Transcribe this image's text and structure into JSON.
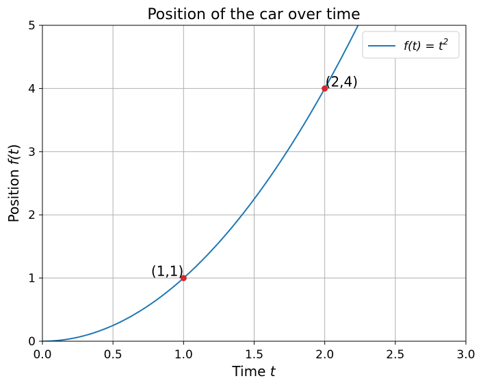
{
  "chart_data": {
    "type": "line",
    "title": "Position of the car over time",
    "xlabel": {
      "text": "Time ",
      "var": "t"
    },
    "ylabel": {
      "text": "Position ",
      "func": "f(",
      "var": "t",
      "close": ")"
    },
    "xlim": [
      0,
      3.0
    ],
    "ylim": [
      0,
      5
    ],
    "grid": true,
    "legend_position": "top-right",
    "x_ticks": [
      {
        "value": 0.0,
        "label": "0.0"
      },
      {
        "value": 0.5,
        "label": "0.5"
      },
      {
        "value": 1.0,
        "label": "1.0"
      },
      {
        "value": 1.5,
        "label": "1.5"
      },
      {
        "value": 2.0,
        "label": "2.0"
      },
      {
        "value": 2.5,
        "label": "2.5"
      },
      {
        "value": 3.0,
        "label": "3.0"
      }
    ],
    "y_ticks": [
      {
        "value": 0,
        "label": "0"
      },
      {
        "value": 1,
        "label": "1"
      },
      {
        "value": 2,
        "label": "2"
      },
      {
        "value": 3,
        "label": "3"
      },
      {
        "value": 4,
        "label": "4"
      },
      {
        "value": 5,
        "label": "5"
      }
    ],
    "series": [
      {
        "name": "f(t) = t²",
        "name_parts": {
          "lhs": "f(t) = t",
          "sup": "2"
        },
        "function": "t^2",
        "color": "#1f77b4",
        "x": [
          0.0,
          0.25,
          0.5,
          0.75,
          1.0,
          1.25,
          1.5,
          1.75,
          2.0,
          2.25
        ],
        "y": [
          0.0,
          0.0625,
          0.25,
          0.5625,
          1.0,
          1.5625,
          2.25,
          3.0625,
          4.0,
          5.0625
        ]
      }
    ],
    "points": [
      {
        "x": 1,
        "y": 1,
        "label": "(1,1)",
        "color": "#d62728"
      },
      {
        "x": 2,
        "y": 4,
        "label": "(2,4)",
        "color": "#d62728"
      }
    ],
    "colors": {
      "grid": "#b0b0b0",
      "axis": "#000000"
    }
  }
}
